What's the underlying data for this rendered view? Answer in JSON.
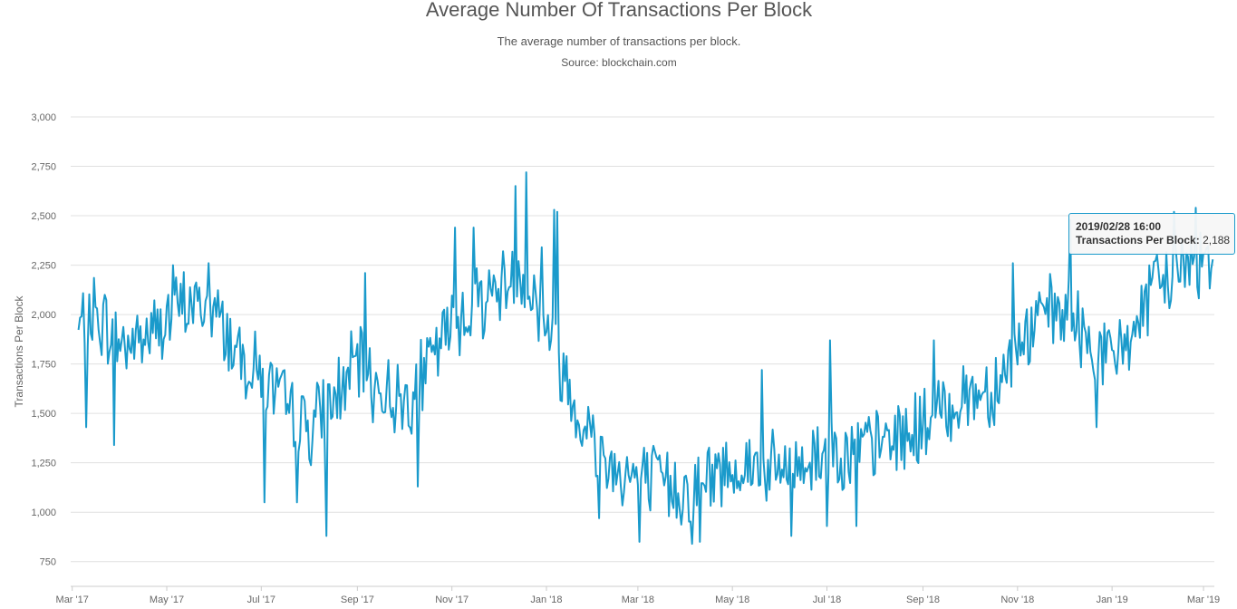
{
  "chart_data": {
    "type": "line",
    "title": "Average Number Of Transactions Per Block",
    "subtitle": "The average number of transactions per block.",
    "source": "Source: blockchain.com",
    "ylabel": "Transactions Per Block",
    "ylim": [
      625,
      3000
    ],
    "yticks": [
      3000,
      2750,
      2500,
      2250,
      2000,
      1750,
      1500,
      1250,
      1000,
      750
    ],
    "ytick_labels": [
      "3,000",
      "2,750",
      "2,500",
      "2,250",
      "2,000",
      "1,750",
      "1,500",
      "1,250",
      "1,000",
      "750"
    ],
    "xlim": [
      "2017-02-28",
      "2019-03-08"
    ],
    "xticks": [
      "2017-03-01",
      "2017-05-01",
      "2017-07-01",
      "2017-09-01",
      "2017-11-01",
      "2018-01-01",
      "2018-03-01",
      "2018-05-01",
      "2018-07-01",
      "2018-09-01",
      "2018-11-01",
      "2019-01-01",
      "2019-03-01"
    ],
    "xtick_labels": [
      "Mar '17",
      "May '17",
      "Jul '17",
      "Sep '17",
      "Nov '17",
      "Jan '18",
      "Mar '18",
      "May '18",
      "Jul '18",
      "Sep '18",
      "Nov '18",
      "Jan '19",
      "Mar '19"
    ],
    "grid": true,
    "color": "#1a9acb",
    "series": [
      {
        "anchors": [
          [
            "2017-03-05",
            1910
          ],
          [
            "2017-03-15",
            2010
          ],
          [
            "2017-04-01",
            1850
          ],
          [
            "2017-04-15",
            1880
          ],
          [
            "2017-05-01",
            1970
          ],
          [
            "2017-05-15",
            2060
          ],
          [
            "2017-06-01",
            2020
          ],
          [
            "2017-06-15",
            1820
          ],
          [
            "2017-07-01",
            1700
          ],
          [
            "2017-07-15",
            1540
          ],
          [
            "2017-08-01",
            1430
          ],
          [
            "2017-08-15",
            1550
          ],
          [
            "2017-09-01",
            1750
          ],
          [
            "2017-09-15",
            1620
          ],
          [
            "2017-10-01",
            1560
          ],
          [
            "2017-10-15",
            1710
          ],
          [
            "2017-11-01",
            1950
          ],
          [
            "2017-11-15",
            2060
          ],
          [
            "2017-12-01",
            2130
          ],
          [
            "2017-12-15",
            2230
          ],
          [
            "2018-01-01",
            1950
          ],
          [
            "2018-01-15",
            1640
          ],
          [
            "2018-02-01",
            1340
          ],
          [
            "2018-02-15",
            1220
          ],
          [
            "2018-03-01",
            1170
          ],
          [
            "2018-03-15",
            1150
          ],
          [
            "2018-04-01",
            1110
          ],
          [
            "2018-04-15",
            1160
          ],
          [
            "2018-05-01",
            1240
          ],
          [
            "2018-05-15",
            1230
          ],
          [
            "2018-06-01",
            1200
          ],
          [
            "2018-06-15",
            1240
          ],
          [
            "2018-07-01",
            1330
          ],
          [
            "2018-07-15",
            1300
          ],
          [
            "2018-08-01",
            1330
          ],
          [
            "2018-08-15",
            1380
          ],
          [
            "2018-09-01",
            1430
          ],
          [
            "2018-09-15",
            1520
          ],
          [
            "2018-10-01",
            1600
          ],
          [
            "2018-10-15",
            1620
          ],
          [
            "2018-11-01",
            1830
          ],
          [
            "2018-11-15",
            1980
          ],
          [
            "2018-12-01",
            2010
          ],
          [
            "2018-12-15",
            1880
          ],
          [
            "2019-01-01",
            1760
          ],
          [
            "2019-01-15",
            1930
          ],
          [
            "2019-02-01",
            2160
          ],
          [
            "2019-02-15",
            2230
          ],
          [
            "2019-03-01",
            2290
          ],
          [
            "2019-03-07",
            2300
          ]
        ],
        "peaks": [
          [
            "2017-03-10",
            1430
          ],
          [
            "2017-03-28",
            1340
          ],
          [
            "2017-05-05",
            2250
          ],
          [
            "2017-05-28",
            2260
          ],
          [
            "2017-07-03",
            1050
          ],
          [
            "2017-07-24",
            1050
          ],
          [
            "2017-08-12",
            880
          ],
          [
            "2017-09-06",
            2210
          ],
          [
            "2017-10-10",
            1130
          ],
          [
            "2017-11-03",
            2440
          ],
          [
            "2017-11-15",
            2440
          ],
          [
            "2017-12-12",
            2650
          ],
          [
            "2017-12-19",
            2720
          ],
          [
            "2017-12-29",
            2340
          ],
          [
            "2018-01-06",
            2530
          ],
          [
            "2018-01-08",
            2520
          ],
          [
            "2018-02-04",
            970
          ],
          [
            "2018-03-02",
            850
          ],
          [
            "2018-04-05",
            840
          ],
          [
            "2018-04-10",
            850
          ],
          [
            "2018-05-20",
            1720
          ],
          [
            "2018-06-08",
            880
          ],
          [
            "2018-07-01",
            930
          ],
          [
            "2018-07-03",
            1870
          ],
          [
            "2018-07-20",
            930
          ],
          [
            "2018-09-08",
            1870
          ],
          [
            "2018-10-29",
            2260
          ],
          [
            "2018-12-05",
            2480
          ],
          [
            "2018-12-22",
            1430
          ],
          [
            "2019-02-10",
            2520
          ],
          [
            "2019-02-24",
            2540
          ]
        ],
        "noise": 170,
        "seed": 7
      }
    ],
    "tooltip": {
      "date": "2019/02/28 16:00",
      "label": "Transactions Per Block",
      "value": "2,188"
    }
  }
}
